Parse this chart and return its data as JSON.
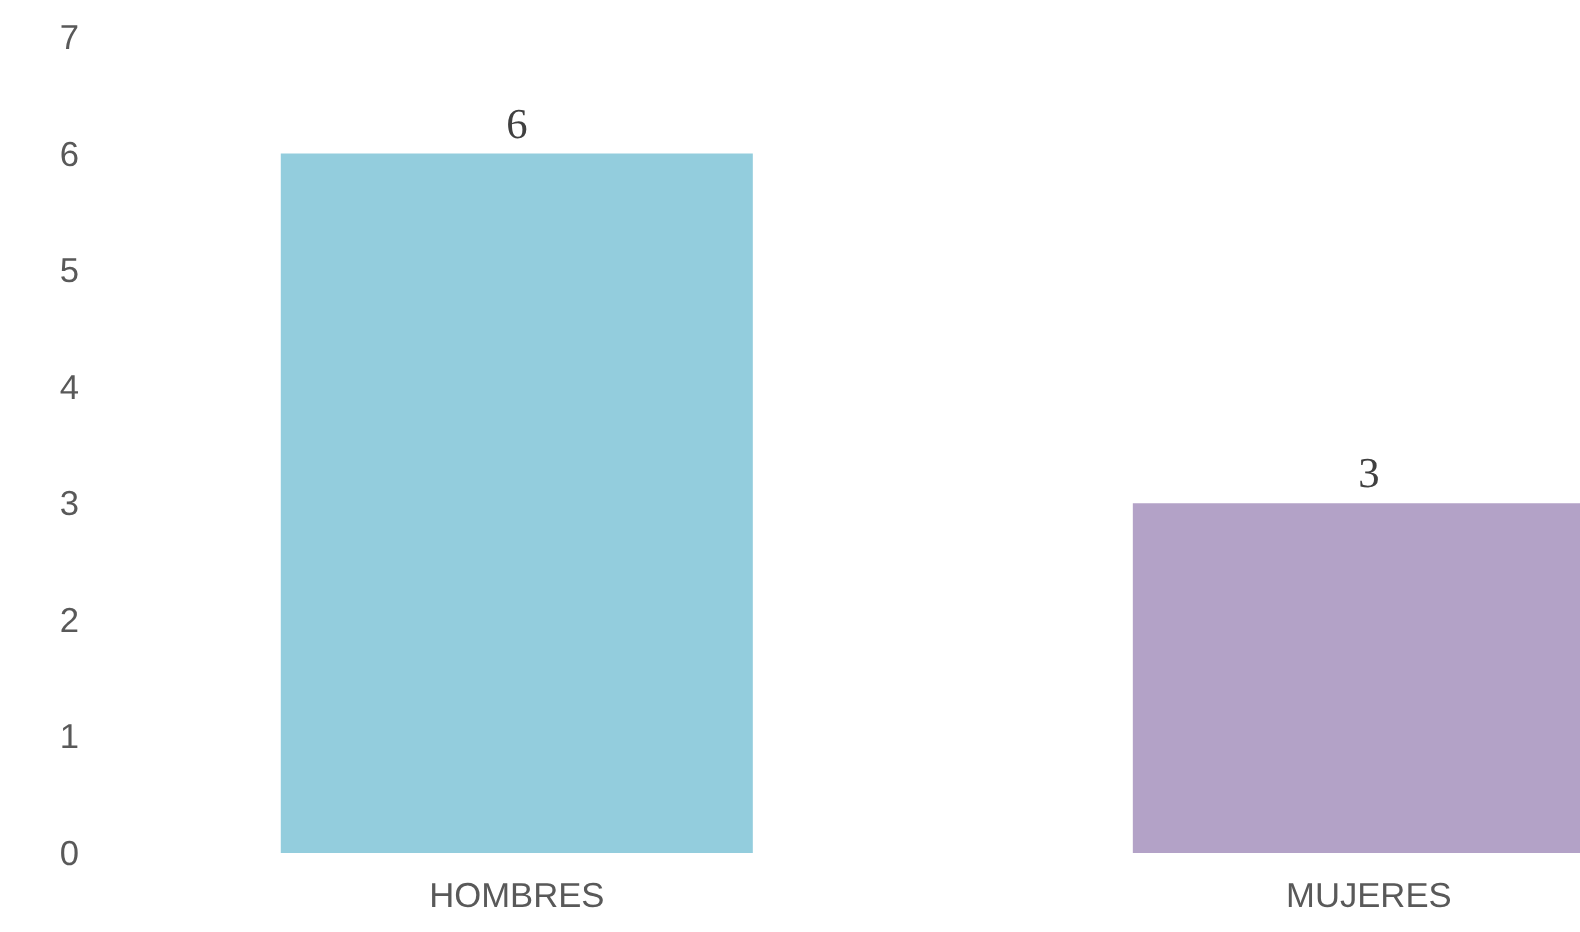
{
  "chart_data": {
    "type": "bar",
    "categories": [
      "HOMBRES",
      "MUJERES"
    ],
    "values": [
      6,
      3
    ],
    "colors": [
      "#93cddd",
      "#b3a2c7"
    ],
    "ylim": [
      0,
      7
    ],
    "yticks": [
      0,
      1,
      2,
      3,
      4,
      5,
      6,
      7
    ],
    "grid": false,
    "data_labels": true
  }
}
